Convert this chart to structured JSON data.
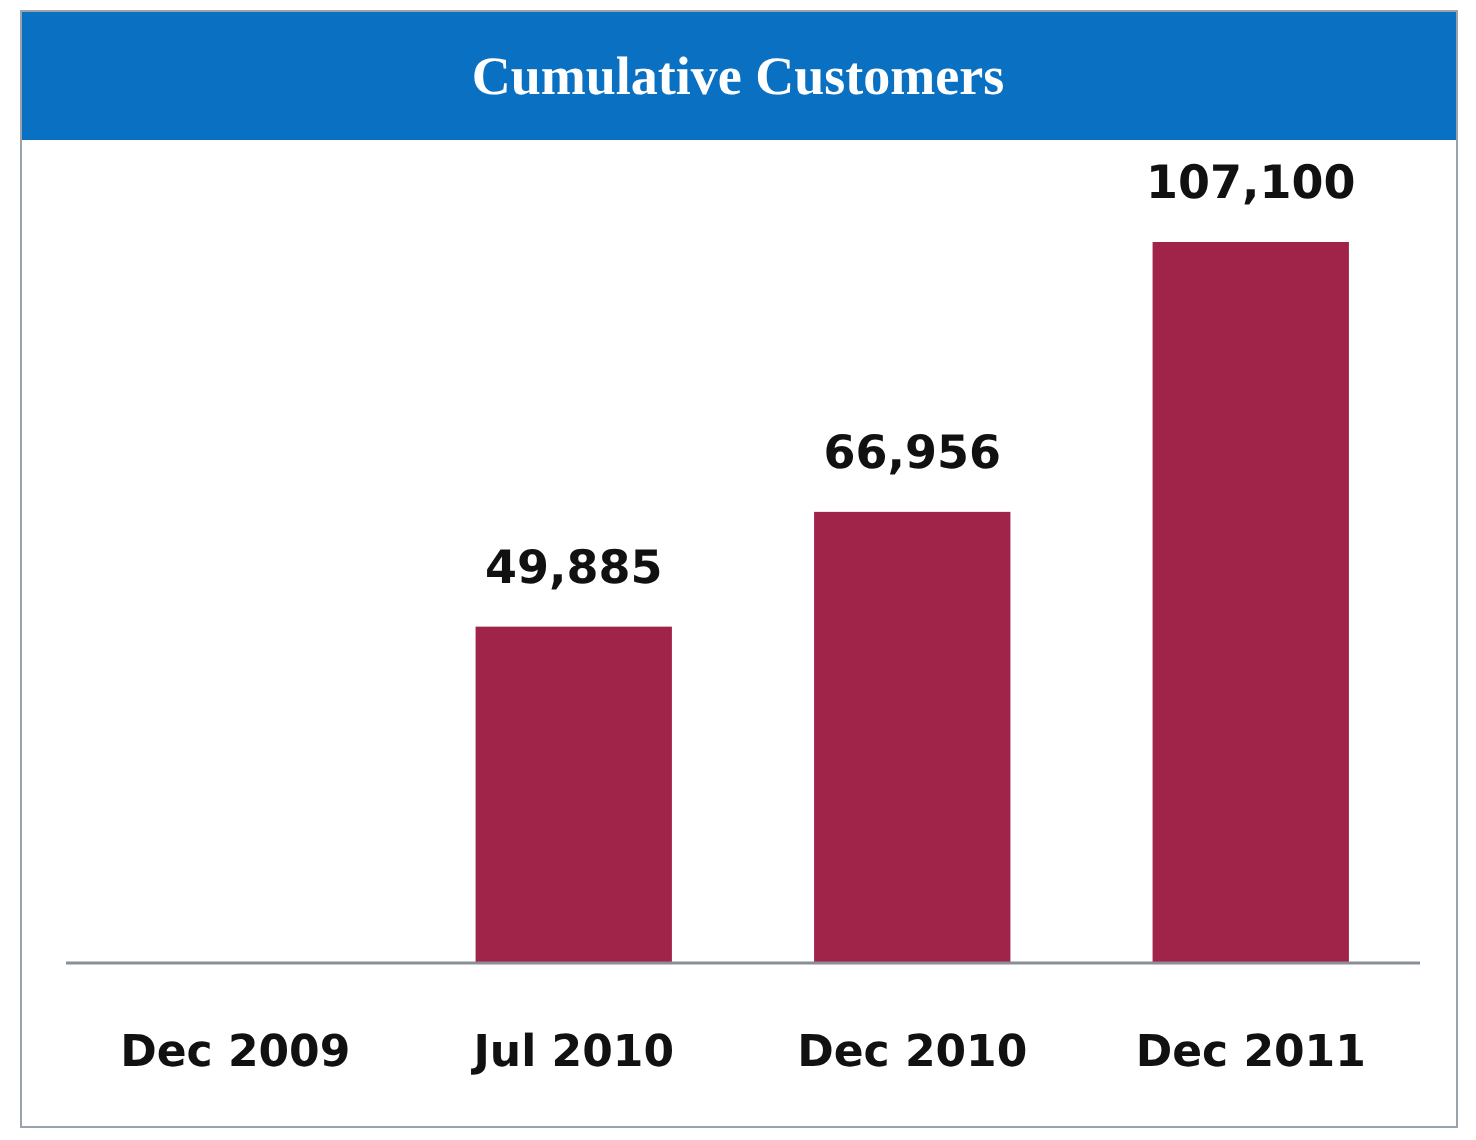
{
  "chart_data": {
    "type": "bar",
    "title": "Cumulative Customers",
    "categories": [
      "Dec 2009",
      "Jul 2010",
      "Dec 2010",
      "Dec 2011"
    ],
    "values": [
      null,
      49885,
      66956,
      107100
    ],
    "color": "#a0244a",
    "value_labels": [
      null,
      "49,885",
      "66,956",
      "107,100"
    ]
  }
}
